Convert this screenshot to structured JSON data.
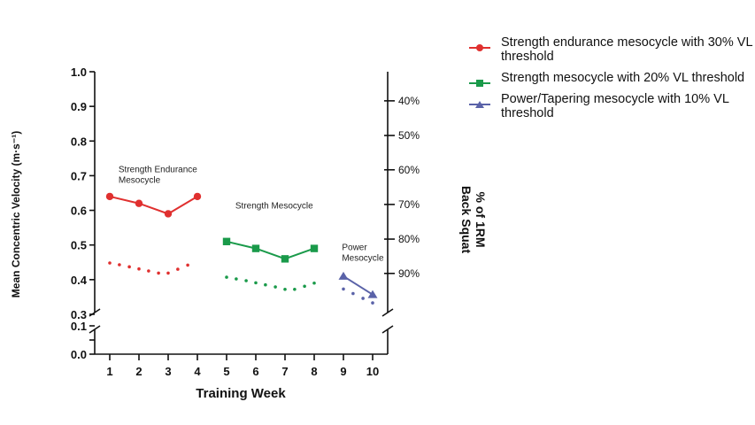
{
  "chart_data": {
    "type": "line",
    "title": "",
    "xlabel": "Training Week",
    "ylabel": "Mean Concentric Velocity (m·s⁻¹)",
    "y2label_line1": "% of 1RM",
    "y2label_line2": "Back Squat",
    "x_ticks": [
      1,
      2,
      3,
      4,
      5,
      6,
      7,
      8,
      9,
      10
    ],
    "y_ticks": [
      "0.0",
      "0.1",
      "0.3",
      "0.4",
      "0.5",
      "0.6",
      "0.7",
      "0.8",
      "0.9",
      "1.0"
    ],
    "y_tick_values": [
      0.0,
      0.1,
      0.3,
      0.4,
      0.5,
      0.6,
      0.7,
      0.8,
      0.9,
      1.0
    ],
    "ylim": [
      0,
      1.0
    ],
    "y_axis_break": [
      0.1,
      0.3
    ],
    "right_axis": {
      "labels": [
        "40%",
        "50%",
        "60%",
        "70%",
        "80%",
        "90%"
      ],
      "velocity_equivalents": [
        0.916,
        0.816,
        0.717,
        0.617,
        0.517,
        0.418
      ]
    },
    "series": [
      {
        "name": "Strength endurance mesocycle with 30% VL threshold",
        "color": "#e0302f",
        "marker": "circle",
        "x": [
          1,
          2,
          3,
          4
        ],
        "y": [
          0.64,
          0.62,
          0.59,
          0.64
        ],
        "lower_dotted": {
          "x": [
            1,
            1.33,
            1.67,
            2,
            2.33,
            2.67,
            3,
            3.33,
            3.67
          ],
          "y": [
            0.448,
            0.443,
            0.437,
            0.431,
            0.425,
            0.419,
            0.419,
            0.43,
            0.442
          ]
        }
      },
      {
        "name": "Strength mesocycle with 20% VL threshold",
        "color": "#1a9a4a",
        "marker": "square",
        "x": [
          5,
          6,
          7,
          8
        ],
        "y": [
          0.51,
          0.49,
          0.46,
          0.49
        ],
        "lower_dotted": {
          "x": [
            5,
            5.33,
            5.67,
            6,
            6.33,
            6.67,
            7,
            7.33,
            7.67,
            8
          ],
          "y": [
            0.407,
            0.402,
            0.397,
            0.391,
            0.385,
            0.379,
            0.372,
            0.372,
            0.381,
            0.39
          ]
        }
      },
      {
        "name": "Power/Tapering mesocycle with 10% VL threshold",
        "color": "#5a62a8",
        "marker": "triangle",
        "x": [
          9,
          10
        ],
        "y": [
          0.41,
          0.357
        ],
        "lower_dotted": {
          "x": [
            9,
            9.33,
            9.67,
            10
          ],
          "y": [
            0.373,
            0.36,
            0.346,
            0.333
          ]
        }
      }
    ],
    "annotations": [
      {
        "lines": [
          "Strength Endurance",
          "Mesocycle"
        ],
        "x": 1.3,
        "y": 0.71
      },
      {
        "lines": [
          "Strength Mesocycle"
        ],
        "x": 5.3,
        "y": 0.605
      },
      {
        "lines": [
          "Power",
          "Mesocycle"
        ],
        "x": 8.95,
        "y": 0.485
      }
    ],
    "legend_placement": "top-right",
    "grid": false
  }
}
